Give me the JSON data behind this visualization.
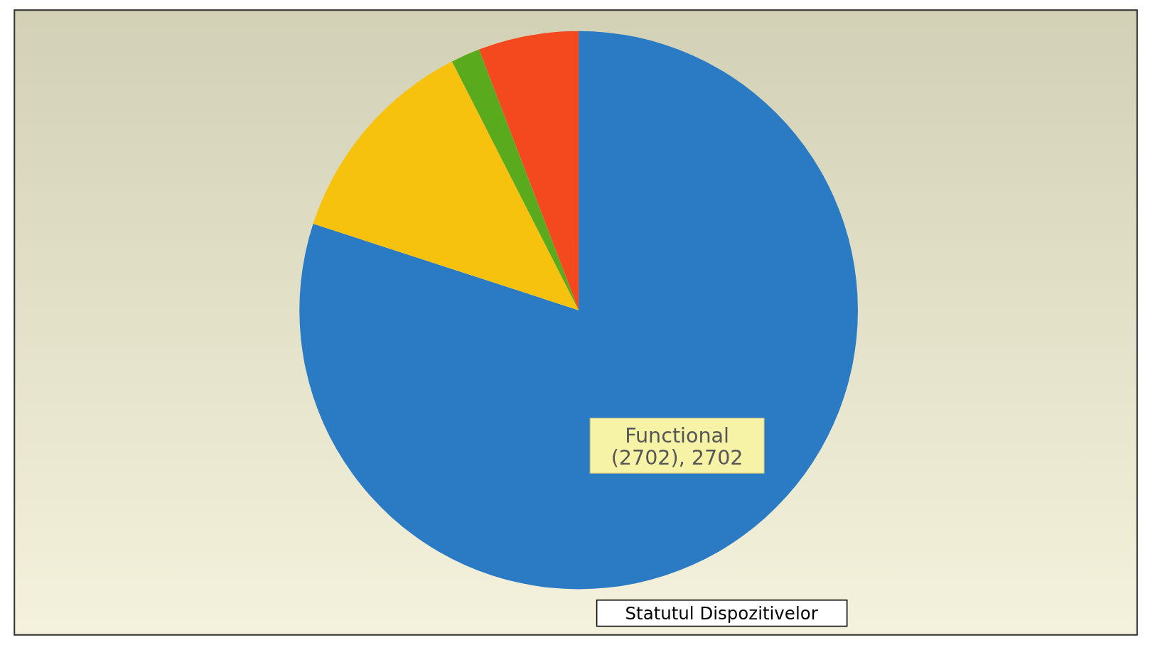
{
  "chart_data": {
    "type": "pie",
    "title": "Statutul Dispozitivelor",
    "categories": [
      "Functional",
      null,
      null,
      null
    ],
    "values": [
      2702,
      422,
      57,
      196
    ],
    "colors": [
      "#2b7bc4",
      "#f7c20e",
      "#5aaa1e",
      "#f4491f"
    ],
    "value_labels": [
      "(2702), 2702",
      null,
      null,
      null
    ]
  }
}
